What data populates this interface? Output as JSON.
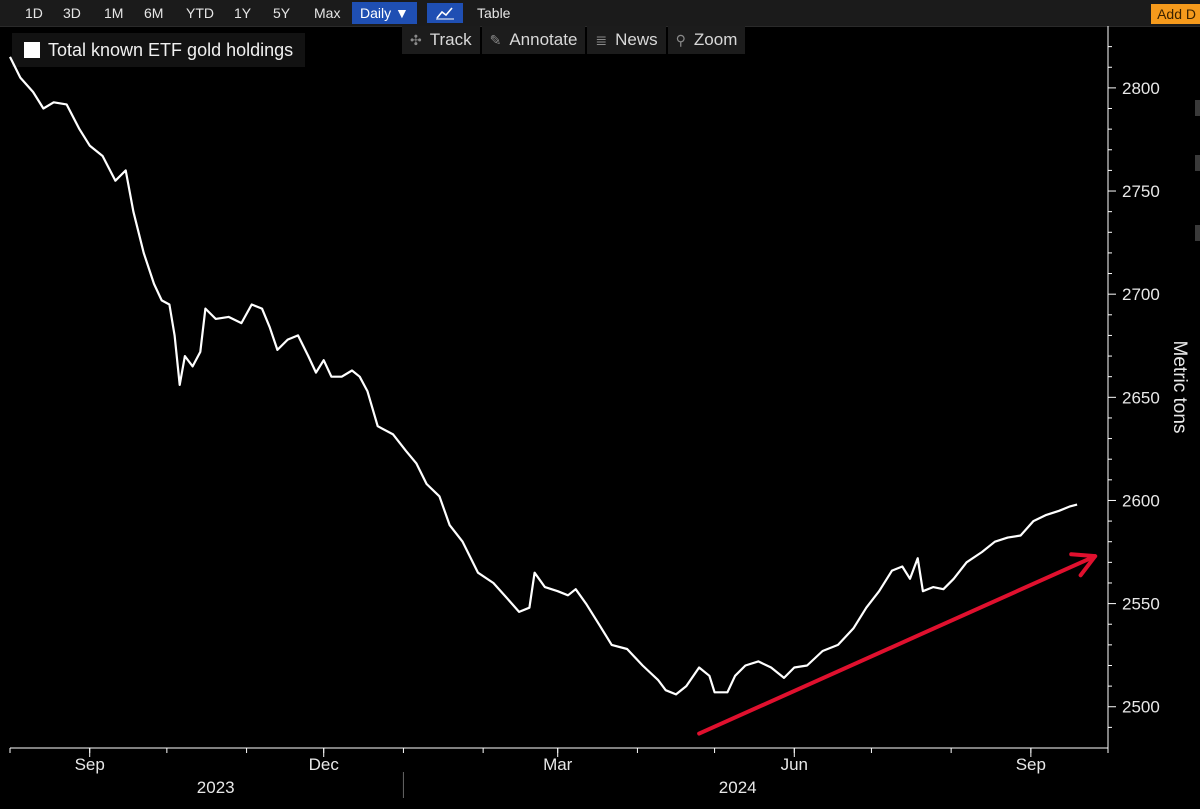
{
  "toolbar": {
    "ranges": [
      "1D",
      "3D",
      "1M",
      "6M",
      "YTD",
      "1Y",
      "5Y",
      "Max"
    ],
    "interval_label": "Daily ▼",
    "table_label": "Table",
    "add_label": "Add D"
  },
  "tools": [
    {
      "label": "Track",
      "icon": "crosshair-icon"
    },
    {
      "label": "Annotate",
      "icon": "pencil-icon"
    },
    {
      "label": "News",
      "icon": "news-icon"
    },
    {
      "label": "Zoom",
      "icon": "magnifier-icon"
    }
  ],
  "colors": {
    "line": "#ffffff",
    "arrow": "#e0102e",
    "axis": "#ffffff",
    "background": "#000000"
  },
  "chart_data": {
    "type": "line",
    "legend": "Total known ETF gold holdings",
    "ylabel": "Metric tons",
    "ylim": [
      2480,
      2830
    ],
    "y_ticks": [
      2500,
      2550,
      2600,
      2650,
      2700,
      2750,
      2800
    ],
    "xlim": [
      "2023-08-01",
      "2024-10-01"
    ],
    "x_tick_labels": [
      {
        "date": "2023-09-01",
        "label": "Sep"
      },
      {
        "date": "2023-12-01",
        "label": "Dec"
      },
      {
        "date": "2024-03-01",
        "label": "Mar"
      },
      {
        "date": "2024-06-01",
        "label": "Jun"
      },
      {
        "date": "2024-09-01",
        "label": "Sep"
      }
    ],
    "year_labels": [
      {
        "date": "2023-10-20",
        "label": "2023"
      },
      {
        "date": "2024-05-10",
        "label": "2024"
      }
    ],
    "year_separator": "2024-01-01",
    "series": [
      {
        "name": "Total known ETF gold holdings",
        "points": [
          [
            "2023-08-01",
            2815
          ],
          [
            "2023-08-05",
            2805
          ],
          [
            "2023-08-10",
            2798
          ],
          [
            "2023-08-14",
            2790
          ],
          [
            "2023-08-18",
            2793
          ],
          [
            "2023-08-23",
            2792
          ],
          [
            "2023-08-28",
            2780
          ],
          [
            "2023-09-01",
            2772
          ],
          [
            "2023-09-06",
            2767
          ],
          [
            "2023-09-11",
            2755
          ],
          [
            "2023-09-15",
            2760
          ],
          [
            "2023-09-18",
            2740
          ],
          [
            "2023-09-22",
            2720
          ],
          [
            "2023-09-26",
            2705
          ],
          [
            "2023-09-29",
            2697
          ],
          [
            "2023-10-02",
            2695
          ],
          [
            "2023-10-04",
            2680
          ],
          [
            "2023-10-06",
            2656
          ],
          [
            "2023-10-08",
            2670
          ],
          [
            "2023-10-11",
            2665
          ],
          [
            "2023-10-14",
            2672
          ],
          [
            "2023-10-16",
            2693
          ],
          [
            "2023-10-20",
            2688
          ],
          [
            "2023-10-25",
            2689
          ],
          [
            "2023-10-30",
            2686
          ],
          [
            "2023-11-03",
            2695
          ],
          [
            "2023-11-07",
            2693
          ],
          [
            "2023-11-10",
            2684
          ],
          [
            "2023-11-13",
            2673
          ],
          [
            "2023-11-17",
            2678
          ],
          [
            "2023-11-21",
            2680
          ],
          [
            "2023-11-25",
            2670
          ],
          [
            "2023-11-28",
            2662
          ],
          [
            "2023-12-01",
            2668
          ],
          [
            "2023-12-04",
            2660
          ],
          [
            "2023-12-08",
            2660
          ],
          [
            "2023-12-12",
            2663
          ],
          [
            "2023-12-15",
            2660
          ],
          [
            "2023-12-18",
            2653
          ],
          [
            "2023-12-22",
            2636
          ],
          [
            "2023-12-28",
            2632
          ],
          [
            "2024-01-02",
            2624
          ],
          [
            "2024-01-06",
            2618
          ],
          [
            "2024-01-10",
            2608
          ],
          [
            "2024-01-15",
            2602
          ],
          [
            "2024-01-19",
            2588
          ],
          [
            "2024-01-24",
            2580
          ],
          [
            "2024-01-30",
            2565
          ],
          [
            "2024-02-05",
            2560
          ],
          [
            "2024-02-10",
            2553
          ],
          [
            "2024-02-15",
            2546
          ],
          [
            "2024-02-19",
            2548
          ],
          [
            "2024-02-21",
            2565
          ],
          [
            "2024-02-25",
            2558
          ],
          [
            "2024-03-01",
            2556
          ],
          [
            "2024-03-05",
            2554
          ],
          [
            "2024-03-08",
            2557
          ],
          [
            "2024-03-12",
            2550
          ],
          [
            "2024-03-17",
            2540
          ],
          [
            "2024-03-22",
            2530
          ],
          [
            "2024-03-28",
            2528
          ],
          [
            "2024-04-03",
            2520
          ],
          [
            "2024-04-09",
            2513
          ],
          [
            "2024-04-12",
            2508
          ],
          [
            "2024-04-16",
            2506
          ],
          [
            "2024-04-20",
            2510
          ],
          [
            "2024-04-25",
            2519
          ],
          [
            "2024-04-29",
            2515
          ],
          [
            "2024-05-01",
            2507
          ],
          [
            "2024-05-06",
            2507
          ],
          [
            "2024-05-09",
            2515
          ],
          [
            "2024-05-13",
            2520
          ],
          [
            "2024-05-18",
            2522
          ],
          [
            "2024-05-23",
            2519
          ],
          [
            "2024-05-28",
            2514
          ],
          [
            "2024-06-01",
            2519
          ],
          [
            "2024-06-06",
            2520
          ],
          [
            "2024-06-12",
            2527
          ],
          [
            "2024-06-18",
            2530
          ],
          [
            "2024-06-24",
            2538
          ],
          [
            "2024-06-29",
            2548
          ],
          [
            "2024-07-04",
            2556
          ],
          [
            "2024-07-09",
            2566
          ],
          [
            "2024-07-13",
            2568
          ],
          [
            "2024-07-16",
            2562
          ],
          [
            "2024-07-19",
            2572
          ],
          [
            "2024-07-21",
            2556
          ],
          [
            "2024-07-25",
            2558
          ],
          [
            "2024-07-29",
            2557
          ],
          [
            "2024-08-02",
            2562
          ],
          [
            "2024-08-07",
            2570
          ],
          [
            "2024-08-13",
            2575
          ],
          [
            "2024-08-18",
            2580
          ],
          [
            "2024-08-23",
            2582
          ],
          [
            "2024-08-28",
            2583
          ],
          [
            "2024-09-02",
            2590
          ],
          [
            "2024-09-07",
            2593
          ],
          [
            "2024-09-12",
            2595
          ],
          [
            "2024-09-16",
            2597
          ],
          [
            "2024-09-19",
            2598
          ]
        ]
      }
    ],
    "annotations": [
      {
        "type": "arrow",
        "from": [
          "2024-04-25",
          2487
        ],
        "to": [
          "2024-09-26",
          2573
        ]
      }
    ]
  }
}
